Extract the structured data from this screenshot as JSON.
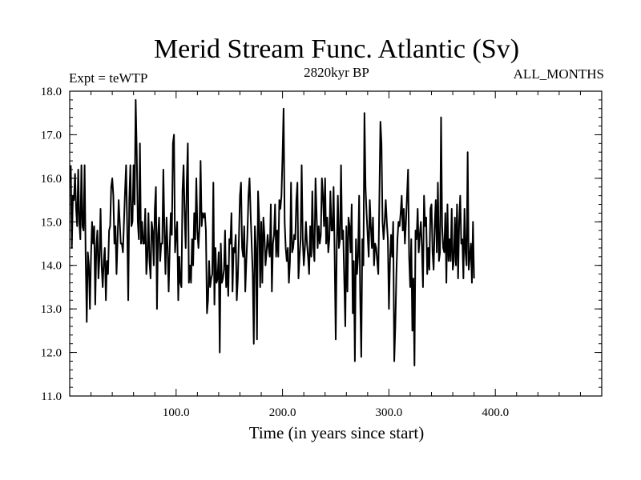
{
  "chart_data": {
    "type": "line",
    "title": "Merid Stream Func. Atlantic (Sv)",
    "subtitle": "2820kyr BP",
    "experiment_label": "Expt = teWTP",
    "period_label": "ALL_MONTHS",
    "xlabel": "Time (in years since start)",
    "ylabel": "",
    "xlim": [
      0,
      500
    ],
    "ylim": [
      11.0,
      18.0
    ],
    "x_ticks": [
      100,
      200,
      300,
      400
    ],
    "x_tick_labels": [
      "100.0",
      "200.0",
      "300.0",
      "400.0"
    ],
    "y_ticks": [
      11,
      12,
      13,
      14,
      15,
      16,
      17,
      18
    ],
    "y_tick_labels": [
      "11.0",
      "12.0",
      "13.0",
      "14.0",
      "15.0",
      "16.0",
      "17.0",
      "18.0"
    ],
    "grid": false,
    "series": [
      {
        "name": "Merid Stream Func. Atlantic",
        "x_start": 1,
        "x_step": 1,
        "values": [
          16.3,
          14.4,
          15.6,
          15.5,
          16.1,
          15.3,
          14.9,
          16.2,
          15.0,
          14.6,
          16.3,
          14.9,
          14.8,
          16.3,
          14.2,
          12.7,
          14.3,
          14.0,
          13.0,
          14.2,
          15.0,
          14.5,
          14.9,
          13.1,
          14.4,
          14.8,
          13.7,
          14.2,
          15.3,
          14.0,
          13.5,
          14.1,
          14.4,
          13.2,
          14.1,
          13.8,
          14.8,
          14.9,
          15.8,
          16.0,
          15.6,
          14.5,
          14.9,
          13.8,
          14.6,
          15.5,
          15.0,
          14.5,
          14.5,
          14.3,
          15.0,
          15.7,
          16.3,
          14.9,
          13.2,
          15.5,
          16.3,
          14.9,
          15.0,
          16.3,
          15.4,
          17.8,
          16.6,
          15.0,
          14.6,
          16.8,
          14.5,
          15.0,
          14.5,
          14.5,
          15.3,
          13.8,
          14.2,
          15.2,
          14.1,
          13.7,
          15.0,
          14.8,
          14.0,
          15.3,
          15.8,
          13.0,
          14.7,
          15.1,
          14.1,
          14.5,
          14.5,
          16.2,
          14.8,
          13.8,
          15.1,
          14.4,
          13.4,
          14.4,
          15.2,
          14.7,
          16.8,
          17.0,
          14.3,
          14.7,
          15.0,
          13.2,
          14.2,
          13.6,
          13.5,
          15.7,
          16.3,
          15.2,
          14.4,
          15.9,
          16.8,
          13.6,
          14.0,
          13.6,
          14.6,
          14.0,
          15.2,
          14.6,
          16.0,
          14.8,
          14.4,
          14.9,
          16.4,
          14.9,
          15.2,
          15.1,
          15.2,
          14.8,
          12.9,
          13.2,
          14.1,
          13.5,
          13.7,
          13.8,
          15.9,
          13.1,
          14.4,
          13.6,
          13.7,
          14.3,
          12.0,
          14.5,
          13.6,
          13.7,
          13.9,
          14.8,
          13.5,
          14.0,
          13.3,
          14.6,
          14.5,
          15.2,
          13.4,
          14.4,
          14.3,
          14.7,
          13.2,
          13.7,
          14.6,
          15.6,
          15.9,
          14.4,
          14.2,
          14.9,
          13.4,
          14.1,
          14.7,
          15.6,
          16.0,
          15.2,
          14.5,
          13.8,
          12.2,
          14.9,
          14.4,
          12.3,
          15.7,
          15.1,
          13.5,
          15.0,
          13.6,
          15.1,
          14.7,
          14.0,
          14.3,
          14.7,
          14.4,
          14.2,
          15.4,
          13.4,
          14.5,
          14.7,
          15.4,
          14.2,
          14.8,
          14.2,
          15.5,
          15.3,
          15.6,
          16.5,
          17.6,
          15.0,
          14.4,
          14.1,
          14.4,
          13.6,
          14.1,
          15.9,
          14.3,
          14.4,
          14.7,
          14.6,
          15.5,
          15.9,
          13.7,
          14.2,
          14.6,
          16.3,
          14.6,
          14.0,
          14.4,
          15.0,
          14.5,
          14.2,
          13.8,
          14.9,
          14.2,
          15.7,
          14.4,
          14.1,
          16.0,
          15.2,
          14.4,
          14.9,
          14.5,
          14.7,
          16.0,
          15.6,
          14.9,
          16.0,
          14.5,
          15.1,
          14.3,
          14.6,
          15.7,
          14.8,
          14.8,
          15.8,
          14.2,
          12.3,
          14.5,
          15.6,
          14.4,
          14.6,
          16.3,
          14.6,
          14.8,
          13.7,
          12.6,
          14.9,
          13.4,
          15.1,
          14.9,
          14.3,
          15.4,
          12.9,
          14.1,
          11.8,
          14.6,
          13.8,
          14.2,
          15.6,
          13.3,
          11.9,
          14.6,
          14.0,
          17.5,
          15.8,
          15.2,
          14.7,
          14.2,
          15.5,
          14.9,
          14.4,
          15.1,
          14.0,
          14.5,
          14.4,
          14.1,
          13.8,
          15.5,
          17.3,
          16.8,
          15.0,
          14.6,
          15.0,
          15.5,
          15.0,
          14.6,
          13.0,
          14.1,
          14.7,
          14.2,
          15.0,
          11.8,
          12.6,
          13.8,
          14.6,
          15.0,
          14.9,
          15.2,
          15.6,
          14.8,
          15.3,
          14.5,
          15.0,
          15.6,
          16.2,
          14.2,
          13.5,
          14.6,
          12.5,
          13.7,
          11.7,
          14.8,
          14.6,
          15.3,
          14.3,
          14.7,
          15.0,
          14.4,
          13.5,
          15.6,
          14.9,
          15.1,
          13.8,
          14.4,
          13.9,
          15.3,
          15.4,
          14.3,
          13.9,
          14.9,
          15.5,
          14.3,
          15.9,
          14.1,
          14.3,
          17.4,
          14.9,
          14.4,
          14.3,
          15.2,
          13.6,
          15.4,
          14.1,
          14.6,
          14.1,
          15.3,
          13.9,
          14.1,
          15.1,
          14.0,
          15.4,
          13.7,
          15.0,
          15.6,
          14.5,
          14.6,
          13.7,
          15.3,
          14.3,
          14.0,
          16.6,
          13.9,
          14.2,
          14.5,
          13.6,
          15.0,
          13.7
        ]
      }
    ]
  }
}
